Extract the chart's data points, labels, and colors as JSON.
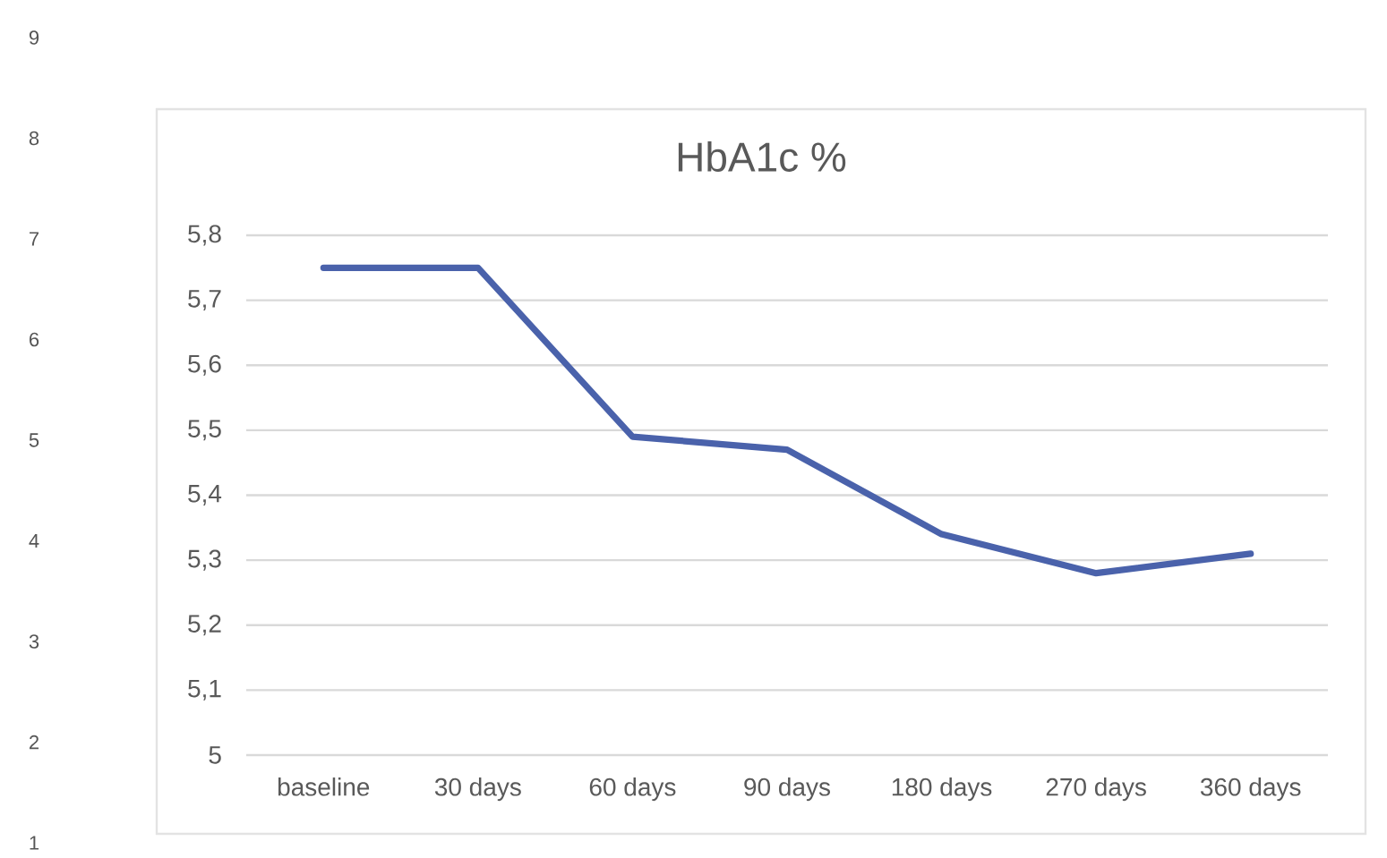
{
  "chart_data": {
    "type": "line",
    "title": "HbA1c %",
    "categories": [
      "baseline",
      "30 days",
      "60 days",
      "90 days",
      "180 days",
      "270 days",
      "360 days"
    ],
    "series": [
      {
        "color": "#4a62ab",
        "values": [
          5.75,
          5.75,
          5.49,
          5.47,
          5.34,
          5.28,
          5.31
        ]
      }
    ],
    "ylim": [
      5,
      5.8
    ],
    "yticks": [
      5,
      {
        "value": 5.1,
        "label": "5,1"
      },
      {
        "value": 5.2,
        "label": "5,2"
      },
      {
        "value": 5.3,
        "label": "5,3"
      },
      {
        "value": 5.4,
        "label": "5,4"
      },
      {
        "value": 5.5,
        "label": "5,5"
      },
      {
        "value": 5.6,
        "label": "5,6"
      },
      {
        "value": 5.7,
        "label": "5,7"
      },
      {
        "value": 5.8,
        "label": "5,8"
      }
    ],
    "grid": "y",
    "annotations": [
      "9",
      "8",
      "7",
      "6",
      "5",
      "4",
      "3",
      "2",
      "1"
    ]
  }
}
